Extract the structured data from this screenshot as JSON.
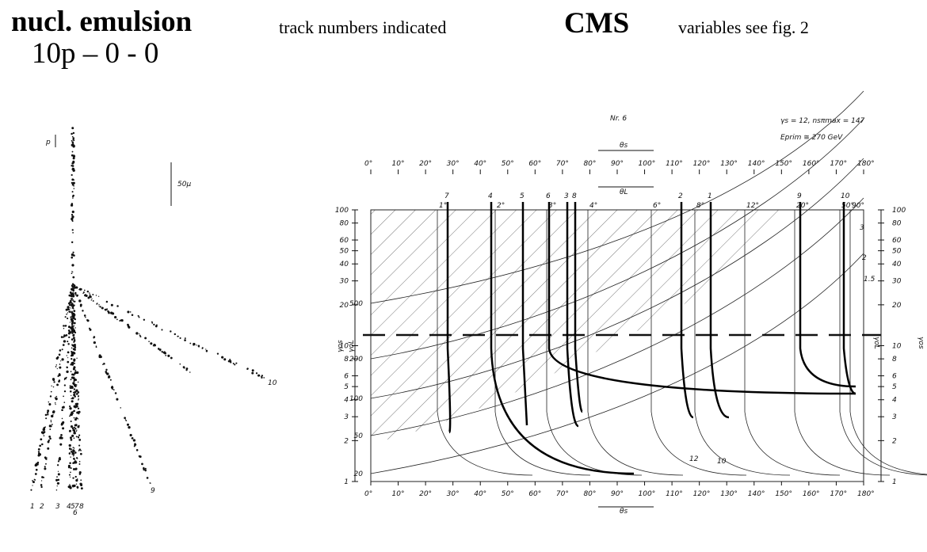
{
  "header": {
    "left_title": "nucl. emulsion",
    "left_subtitle": "10p – 0 - 0",
    "left_note": "track numbers indicated",
    "right_title": "CMS",
    "right_note": "variables see fig. 2"
  },
  "emulsion": {
    "primary_label": "p",
    "scale_label": "50μ",
    "track_labels": [
      "1",
      "2",
      "3",
      "4",
      "5",
      "7",
      "8",
      "6",
      "9",
      "10"
    ]
  },
  "diagram": {
    "title": "Nr. 6",
    "params": "γs = 12, nsπmax = 147",
    "energy": "Eprim ≅ 270 GeV",
    "theta_s": "θs",
    "theta_l": "θL",
    "gamma_os": "γos",
    "gamma_ol": "γoL",
    "angle_ticks": [
      "0°",
      "10°",
      "20°",
      "30°",
      "40°",
      "50°",
      "60°",
      "70°",
      "80°",
      "90°",
      "100°",
      "110°",
      "120°",
      "130°",
      "140°",
      "150°",
      "160°",
      "170°",
      "180°"
    ],
    "log_ticks": [
      "100",
      "80",
      "60",
      "50",
      "40",
      "30",
      "20",
      "10",
      "8",
      "6",
      "5",
      "4",
      "3",
      "2",
      "1"
    ],
    "inner_ticks": [
      "500",
      "200",
      "100",
      "50",
      "20"
    ],
    "track_labels": [
      "7",
      "4",
      "5",
      "6",
      "3",
      "8",
      "2",
      "1",
      "9",
      "10"
    ],
    "curve_labels": [
      "1°",
      "2°",
      "3°",
      "4°",
      "6°",
      "8°",
      "12°",
      "20°",
      "50°",
      "90°"
    ],
    "right_curve_labels": [
      "3",
      "2",
      "1.5"
    ],
    "bottom_curve_labels": [
      "12",
      "10"
    ]
  }
}
